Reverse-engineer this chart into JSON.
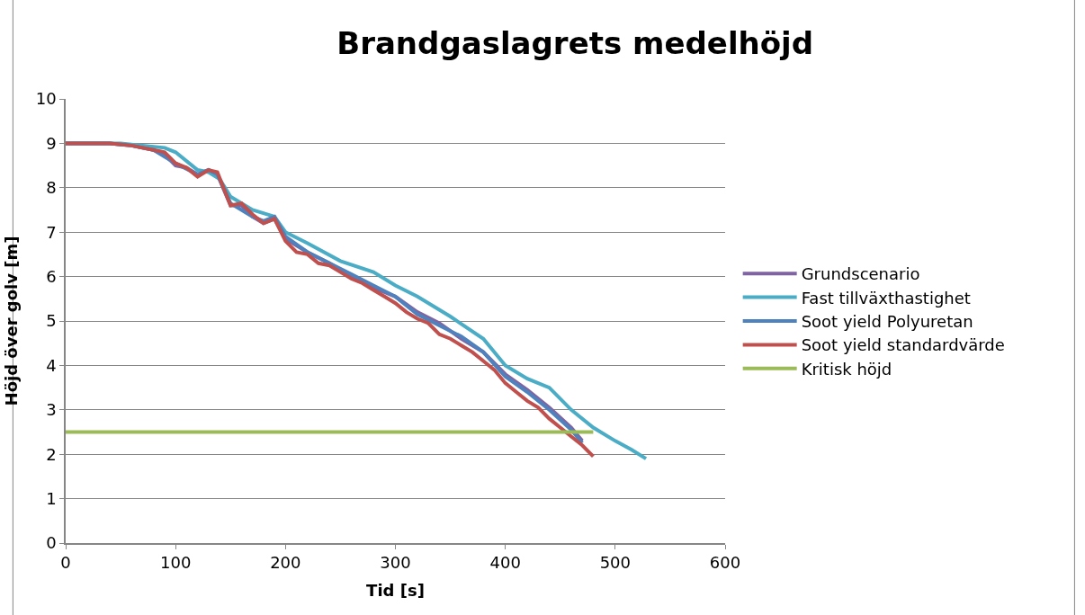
{
  "chart_data": {
    "type": "line",
    "title": "Brandgaslagrets medelhöjd",
    "xlabel": "Tid [s]",
    "ylabel": "Höjd över golv [m]",
    "xlim": [
      0,
      600
    ],
    "xticks": [
      0,
      100,
      200,
      300,
      400,
      500,
      600
    ],
    "ylim": [
      0,
      10
    ],
    "yticks": [
      0,
      1,
      2,
      3,
      4,
      5,
      6,
      7,
      8,
      9,
      10
    ],
    "grid": "y",
    "legend": "right",
    "marker": "none",
    "line_style": "solid",
    "series": [
      {
        "name": "Grundscenario",
        "color": "#8064a2",
        "x": [
          0,
          40,
          60,
          80,
          90,
          100,
          110,
          120,
          130,
          138,
          150,
          160,
          170,
          180,
          190,
          200,
          220,
          240,
          260,
          280,
          300,
          320,
          340,
          360,
          380,
          400,
          420,
          440,
          460,
          470
        ],
        "values": [
          9,
          9,
          8.95,
          8.85,
          8.75,
          8.5,
          8.45,
          8.3,
          8.4,
          8.3,
          7.6,
          7.6,
          7.35,
          7.2,
          7.3,
          6.85,
          6.55,
          6.3,
          6.0,
          5.75,
          5.55,
          5.2,
          4.95,
          4.6,
          4.3,
          3.8,
          3.45,
          3.05,
          2.6,
          2.3
        ]
      },
      {
        "name": "Fast tillväxthastighet",
        "color": "#4bacc6",
        "x": [
          0,
          50,
          70,
          90,
          100,
          120,
          130,
          140,
          150,
          170,
          190,
          200,
          220,
          250,
          280,
          300,
          320,
          350,
          380,
          400,
          420,
          440,
          460,
          480,
          500,
          515,
          528
        ],
        "values": [
          9,
          9,
          8.95,
          8.9,
          8.8,
          8.4,
          8.35,
          8.2,
          7.8,
          7.5,
          7.35,
          7.0,
          6.75,
          6.35,
          6.1,
          5.8,
          5.55,
          5.1,
          4.6,
          4.0,
          3.7,
          3.5,
          3.0,
          2.6,
          2.3,
          2.1,
          1.9
        ]
      },
      {
        "name": "Soot yield Polyuretan",
        "color": "#4f81bd",
        "x": [
          0,
          40,
          60,
          80,
          100,
          120,
          130,
          138,
          150,
          170,
          180,
          190,
          200,
          220,
          240,
          260,
          280,
          300,
          320,
          340,
          360,
          380,
          400,
          420,
          440,
          460,
          470
        ],
        "values": [
          9,
          9,
          8.95,
          8.85,
          8.55,
          8.3,
          8.4,
          8.3,
          7.65,
          7.35,
          7.25,
          7.35,
          6.9,
          6.55,
          6.3,
          6.05,
          5.8,
          5.55,
          5.15,
          4.9,
          4.65,
          4.3,
          3.75,
          3.4,
          3.0,
          2.55,
          2.25
        ]
      },
      {
        "name": "Soot yield standardvärde",
        "color": "#c0504d",
        "x": [
          0,
          40,
          60,
          80,
          90,
          100,
          110,
          120,
          130,
          138,
          150,
          160,
          170,
          180,
          190,
          200,
          210,
          220,
          230,
          240,
          250,
          260,
          270,
          280,
          290,
          300,
          310,
          320,
          330,
          340,
          350,
          360,
          370,
          380,
          390,
          400,
          410,
          420,
          430,
          440,
          450,
          460,
          470,
          480
        ],
        "values": [
          9,
          9,
          8.95,
          8.85,
          8.8,
          8.55,
          8.45,
          8.25,
          8.4,
          8.35,
          7.6,
          7.65,
          7.4,
          7.2,
          7.3,
          6.8,
          6.55,
          6.5,
          6.3,
          6.25,
          6.1,
          5.95,
          5.85,
          5.7,
          5.55,
          5.4,
          5.2,
          5.05,
          4.95,
          4.7,
          4.6,
          4.45,
          4.3,
          4.1,
          3.9,
          3.6,
          3.4,
          3.2,
          3.05,
          2.8,
          2.6,
          2.4,
          2.2,
          1.95
        ]
      },
      {
        "name": "Kritisk höjd",
        "color": "#9bbb59",
        "x": [
          0,
          480
        ],
        "values": [
          2.5,
          2.5
        ]
      }
    ]
  }
}
